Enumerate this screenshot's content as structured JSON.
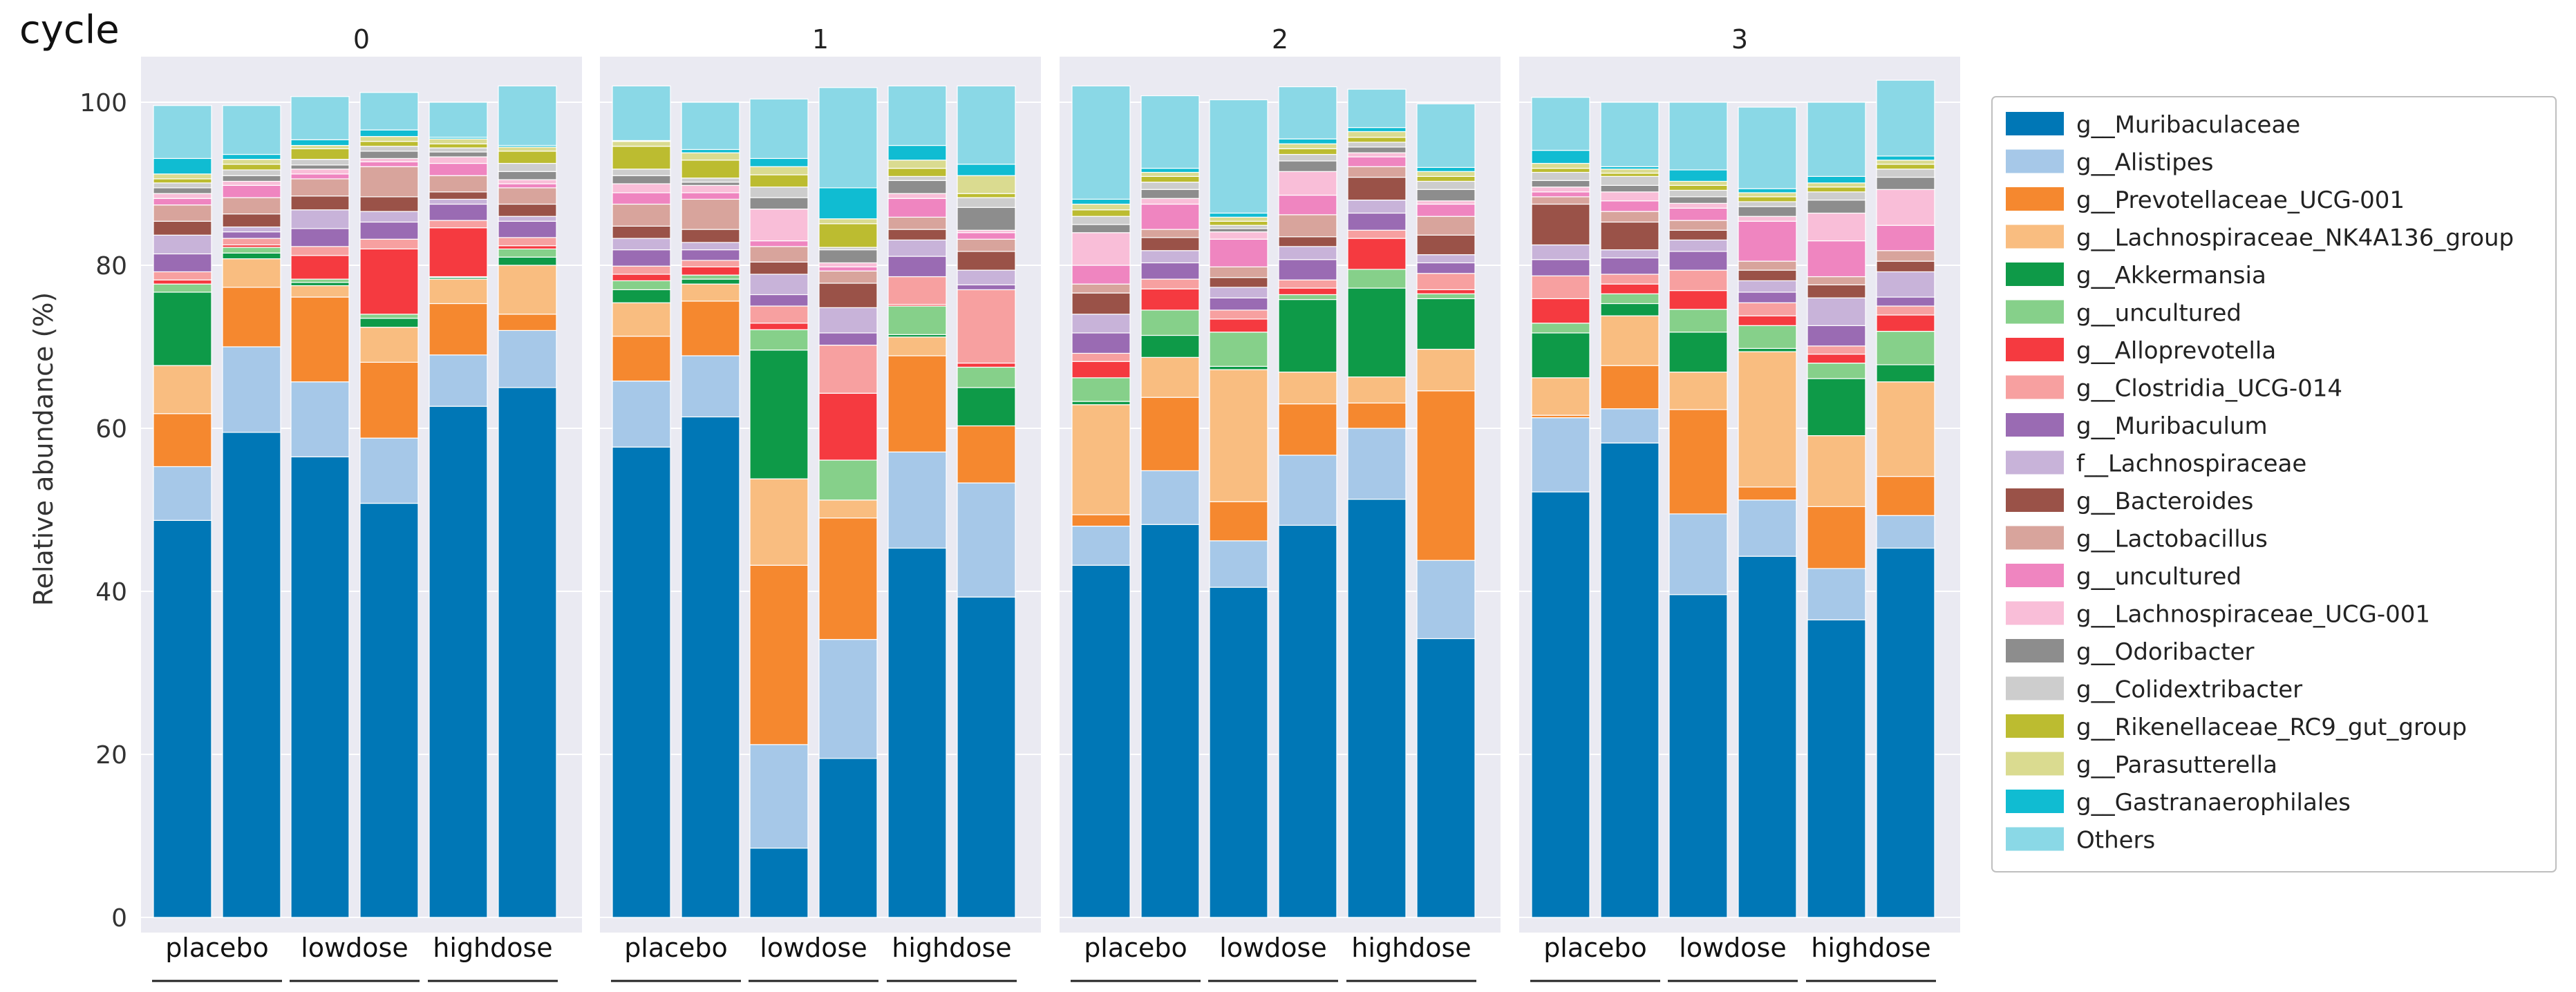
{
  "chart_data": {
    "type": "bar",
    "stacked": true,
    "facet_header": "cycle",
    "ylabel": "Relative abundance (%)",
    "ylim": [
      0,
      100
    ],
    "yticks": [
      0,
      20,
      40,
      60,
      80,
      100
    ],
    "grid": true,
    "legend_position": "right",
    "facets": [
      "0",
      "1",
      "2",
      "3"
    ],
    "groups": [
      "placebo",
      "lowdose",
      "highdose"
    ],
    "series": [
      {
        "name": "g__Muribaculaceae",
        "color": "#0077b6"
      },
      {
        "name": "g__Alistipes",
        "color": "#a6c8e8"
      },
      {
        "name": "g__Prevotellaceae_UCG-001",
        "color": "#f5882f"
      },
      {
        "name": "g__Lachnospiraceae_NK4A136_group",
        "color": "#f9bd80"
      },
      {
        "name": "g__Akkermansia",
        "color": "#0e9a48"
      },
      {
        "name": "g__uncultured",
        "color": "#86d08a"
      },
      {
        "name": "g__Alloprevotella",
        "color": "#f53a40"
      },
      {
        "name": "g__Clostridia_UCG-014",
        "color": "#f7a0a0"
      },
      {
        "name": "g__Muribaculum",
        "color": "#9a6bb3"
      },
      {
        "name": "f__Lachnospiraceae",
        "color": "#c8b3d9"
      },
      {
        "name": "g__Bacteroides",
        "color": "#9a5248"
      },
      {
        "name": "g__Lactobacillus",
        "color": "#d8a49c"
      },
      {
        "name": "g__uncultured",
        "color": "#ef85c0"
      },
      {
        "name": "g__Lachnospiraceae_UCG-001",
        "color": "#f9bed8"
      },
      {
        "name": "g__Odoribacter",
        "color": "#8d8d8d"
      },
      {
        "name": "g__Colidextribacter",
        "color": "#cdcdcd"
      },
      {
        "name": "g__Rikenellaceae_RC9_gut_group",
        "color": "#bcbc30"
      },
      {
        "name": "g__Parasutterella",
        "color": "#dadb90"
      },
      {
        "name": "g__Gastranaerophilales",
        "color": "#10bcd2"
      },
      {
        "name": "Others",
        "color": "#8ad8e6"
      }
    ],
    "panels": [
      {
        "cycle": "0",
        "bars": [
          {
            "group": "placebo",
            "values": [
              48.7,
              6.6,
              6.5,
              5.9,
              9.0,
              1.0,
              0.5,
              1.0,
              2.2,
              2.3,
              1.7,
              2.0,
              0.8,
              0.6,
              0.7,
              0.6,
              0.5,
              0.6,
              1.9,
              6.5
            ]
          },
          {
            "group": "placebo",
            "values": [
              59.5,
              10.5,
              7.3,
              3.5,
              0.7,
              0.7,
              0.3,
              0.8,
              0.8,
              0.6,
              1.6,
              2.0,
              1.5,
              0.5,
              0.7,
              0.7,
              0.7,
              0.6,
              0.6,
              6.0
            ]
          },
          {
            "group": "lowdose",
            "values": [
              56.5,
              9.2,
              10.4,
              1.4,
              0.4,
              0.4,
              2.9,
              1.1,
              2.2,
              2.3,
              1.7,
              2.1,
              0.6,
              0.6,
              0.5,
              0.7,
              1.3,
              0.4,
              0.7,
              5.3
            ]
          },
          {
            "group": "lowdose",
            "values": [
              50.8,
              8.0,
              9.3,
              4.3,
              1.1,
              0.5,
              8.0,
              1.2,
              2.1,
              1.3,
              1.8,
              3.7,
              0.6,
              0.4,
              0.9,
              0.6,
              0.6,
              0.6,
              0.8,
              4.6
            ]
          },
          {
            "group": "highdose",
            "values": [
              62.7,
              6.3,
              6.3,
              3.0,
              0.2,
              0.1,
              6.0,
              0.9,
              2.0,
              0.6,
              0.9,
              2.0,
              1.5,
              0.8,
              0.6,
              0.5,
              0.5,
              0.6,
              0.2,
              4.3
            ]
          },
          {
            "group": "highdose",
            "values": [
              65.0,
              7.0,
              2.0,
              6.0,
              1.0,
              1.0,
              0.4,
              1.0,
              2.0,
              0.6,
              1.5,
              2.0,
              0.5,
              0.5,
              1.0,
              1.0,
              1.5,
              0.5,
              0.2,
              7.3
            ]
          }
        ]
      },
      {
        "cycle": "1",
        "bars": [
          {
            "group": "placebo",
            "values": [
              57.7,
              8.1,
              5.5,
              4.1,
              1.6,
              1.1,
              0.8,
              1.0,
              2.0,
              1.4,
              1.5,
              2.7,
              1.4,
              1.1,
              1.0,
              0.8,
              2.8,
              0.6,
              0.1,
              6.7
            ]
          },
          {
            "group": "placebo",
            "values": [
              61.4,
              7.5,
              6.7,
              2.1,
              0.6,
              0.5,
              1.0,
              0.8,
              1.3,
              0.9,
              1.6,
              3.7,
              0.8,
              0.9,
              0.4,
              0.5,
              2.2,
              0.9,
              0.4,
              5.8
            ]
          },
          {
            "group": "lowdose",
            "values": [
              8.5,
              12.7,
              22.0,
              10.6,
              15.8,
              2.5,
              0.8,
              2.1,
              1.4,
              2.5,
              1.5,
              1.9,
              0.7,
              3.9,
              1.4,
              1.3,
              1.5,
              1.0,
              1.0,
              7.3
            ]
          },
          {
            "group": "lowdose",
            "values": [
              19.5,
              14.6,
              14.9,
              2.2,
              0.0,
              4.9,
              8.2,
              5.9,
              1.5,
              3.1,
              3.0,
              1.5,
              0.5,
              0.5,
              1.6,
              0.3,
              2.9,
              0.6,
              3.8,
              12.3
            ]
          },
          {
            "group": "highdose",
            "values": [
              45.3,
              11.8,
              11.8,
              2.3,
              0.3,
              3.5,
              0.2,
              3.4,
              2.5,
              2.0,
              1.3,
              1.5,
              2.3,
              0.6,
              1.6,
              0.5,
              1.0,
              1.0,
              1.8,
              7.3
            ]
          },
          {
            "group": "highdose",
            "values": [
              39.3,
              14.0,
              7.0,
              0.0,
              4.7,
              2.5,
              0.5,
              9.0,
              0.6,
              1.8,
              2.3,
              1.5,
              0.8,
              0.3,
              2.8,
              1.2,
              0.5,
              2.2,
              1.4,
              9.6
            ]
          }
        ]
      },
      {
        "cycle": "2",
        "bars": [
          {
            "group": "placebo",
            "values": [
              43.2,
              4.8,
              1.4,
              13.5,
              0.4,
              2.9,
              2.0,
              1.0,
              2.5,
              2.3,
              2.6,
              1.1,
              2.3,
              4.0,
              1.0,
              1.0,
              0.8,
              0.7,
              0.6,
              13.9
            ]
          },
          {
            "group": "placebo",
            "values": [
              48.2,
              6.6,
              9.0,
              4.9,
              2.7,
              3.1,
              2.6,
              1.2,
              2.0,
              1.5,
              1.6,
              1.0,
              3.1,
              0.7,
              1.1,
              0.9,
              0.7,
              0.5,
              0.5,
              8.9
            ]
          },
          {
            "group": "lowdose",
            "values": [
              40.5,
              5.7,
              4.8,
              16.2,
              0.4,
              4.2,
              1.6,
              1.1,
              1.5,
              1.3,
              1.2,
              1.3,
              3.4,
              0.9,
              0.4,
              0.4,
              0.5,
              0.5,
              0.5,
              13.9
            ]
          },
          {
            "group": "lowdose",
            "values": [
              48.1,
              8.6,
              6.3,
              3.9,
              8.9,
              0.6,
              0.8,
              1.0,
              2.5,
              1.6,
              1.2,
              2.7,
              2.4,
              2.9,
              1.3,
              0.8,
              0.7,
              0.6,
              0.6,
              6.4
            ]
          },
          {
            "group": "highdose",
            "values": [
              51.3,
              8.7,
              3.1,
              3.2,
              10.9,
              2.3,
              3.8,
              1.0,
              2.1,
              1.6,
              2.8,
              1.3,
              1.2,
              0.5,
              0.7,
              0.6,
              0.6,
              0.7,
              0.5,
              4.7
            ]
          },
          {
            "group": "highdose",
            "values": [
              34.2,
              9.6,
              20.8,
              5.1,
              6.2,
              0.6,
              0.5,
              2.0,
              1.3,
              1.0,
              2.4,
              2.3,
              1.5,
              0.4,
              1.4,
              1.0,
              0.6,
              0.6,
              0.5,
              7.8
            ]
          }
        ]
      },
      {
        "cycle": "3",
        "bars": [
          {
            "group": "placebo",
            "values": [
              52.2,
              9.1,
              0.3,
              4.6,
              5.5,
              1.2,
              3.0,
              2.8,
              2.0,
              1.8,
              5.0,
              0.9,
              0.6,
              0.6,
              0.8,
              1.0,
              0.5,
              0.6,
              1.6,
              6.5
            ]
          },
          {
            "group": "placebo",
            "values": [
              58.2,
              4.2,
              5.3,
              6.1,
              1.5,
              1.2,
              1.2,
              1.2,
              2.0,
              1.0,
              3.4,
              1.3,
              1.3,
              1.1,
              0.8,
              1.1,
              0.4,
              0.5,
              0.3,
              7.9
            ]
          },
          {
            "group": "lowdose",
            "values": [
              39.6,
              9.9,
              12.8,
              4.6,
              4.9,
              2.8,
              2.3,
              2.5,
              2.3,
              1.4,
              1.2,
              1.2,
              1.5,
              0.6,
              0.8,
              0.8,
              0.6,
              0.5,
              1.4,
              8.3
            ]
          },
          {
            "group": "lowdose",
            "values": [
              44.3,
              6.9,
              1.6,
              16.6,
              0.4,
              2.8,
              1.2,
              1.6,
              1.3,
              1.4,
              1.3,
              1.1,
              4.9,
              0.6,
              1.2,
              0.6,
              0.6,
              0.5,
              0.5,
              10.0
            ]
          },
          {
            "group": "highdose",
            "values": [
              36.5,
              6.3,
              7.6,
              8.7,
              7.0,
              1.9,
              1.1,
              1.0,
              2.5,
              3.4,
              1.6,
              1.0,
              4.4,
              3.4,
              1.6,
              1.0,
              0.6,
              0.5,
              0.8,
              9.1
            ]
          },
          {
            "group": "highdose",
            "values": [
              45.3,
              4.0,
              4.8,
              11.6,
              2.1,
              4.1,
              2.0,
              1.1,
              1.1,
              3.1,
              1.3,
              1.3,
              3.1,
              4.4,
              1.5,
              1.0,
              0.6,
              0.5,
              0.5,
              9.3
            ]
          }
        ]
      }
    ]
  }
}
